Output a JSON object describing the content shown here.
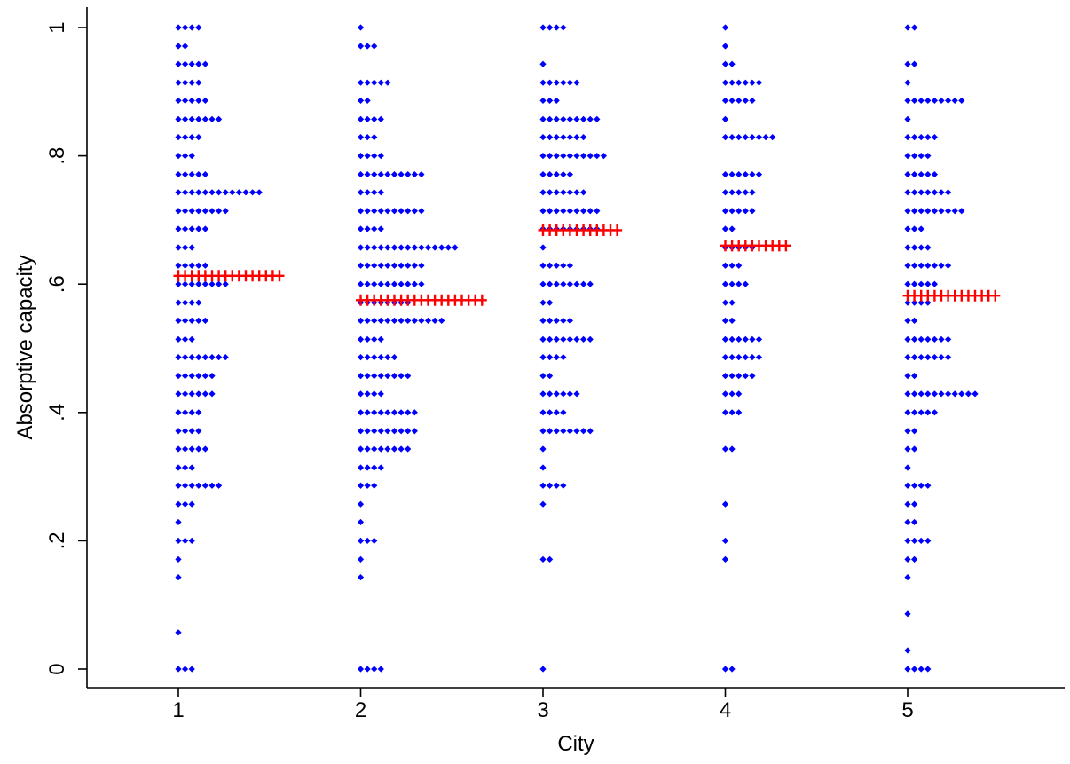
{
  "chart_data": {
    "type": "scatter",
    "title": "",
    "xlabel": "City",
    "ylabel": "Absorptive capacity",
    "x_ticks": [
      {
        "value": 1,
        "label": "1"
      },
      {
        "value": 2,
        "label": "2"
      },
      {
        "value": 3,
        "label": "3"
      },
      {
        "value": 4,
        "label": "4"
      },
      {
        "value": 5,
        "label": "5"
      }
    ],
    "y_ticks": [
      {
        "value": 0,
        "label": "0"
      },
      {
        "value": 0.2,
        "label": ".2"
      },
      {
        "value": 0.4,
        "label": ".4"
      },
      {
        "value": 0.6,
        "label": ".6"
      },
      {
        "value": 0.8,
        "label": ".8"
      },
      {
        "value": 1,
        "label": "1"
      }
    ],
    "xlim": [
      0.5,
      5.85
    ],
    "ylim": [
      -0.03,
      1.03
    ],
    "grid": false,
    "legend": "none",
    "series": [
      {
        "marker": "diamond",
        "color": "#0000ff",
        "groups": [
          {
            "city": 1,
            "bins": [
              {
                "y": 1.0,
                "count": 4
              },
              {
                "y": 0.971,
                "count": 2
              },
              {
                "y": 0.943,
                "count": 5
              },
              {
                "y": 0.914,
                "count": 4
              },
              {
                "y": 0.886,
                "count": 5
              },
              {
                "y": 0.857,
                "count": 7
              },
              {
                "y": 0.829,
                "count": 4
              },
              {
                "y": 0.8,
                "count": 3
              },
              {
                "y": 0.771,
                "count": 5
              },
              {
                "y": 0.743,
                "count": 13
              },
              {
                "y": 0.714,
                "count": 8
              },
              {
                "y": 0.686,
                "count": 5
              },
              {
                "y": 0.657,
                "count": 3
              },
              {
                "y": 0.629,
                "count": 5
              },
              {
                "y": 0.6,
                "count": 8
              },
              {
                "y": 0.571,
                "count": 4
              },
              {
                "y": 0.543,
                "count": 5
              },
              {
                "y": 0.514,
                "count": 3
              },
              {
                "y": 0.486,
                "count": 8
              },
              {
                "y": 0.457,
                "count": 6
              },
              {
                "y": 0.429,
                "count": 6
              },
              {
                "y": 0.4,
                "count": 4
              },
              {
                "y": 0.371,
                "count": 4
              },
              {
                "y": 0.343,
                "count": 5
              },
              {
                "y": 0.314,
                "count": 3
              },
              {
                "y": 0.286,
                "count": 7
              },
              {
                "y": 0.257,
                "count": 3
              },
              {
                "y": 0.229,
                "count": 1
              },
              {
                "y": 0.2,
                "count": 3
              },
              {
                "y": 0.171,
                "count": 1
              },
              {
                "y": 0.143,
                "count": 1
              },
              {
                "y": 0.057,
                "count": 1
              },
              {
                "y": 0.0,
                "count": 3
              }
            ]
          },
          {
            "city": 2,
            "bins": [
              {
                "y": 1.0,
                "count": 1
              },
              {
                "y": 0.971,
                "count": 3
              },
              {
                "y": 0.914,
                "count": 5
              },
              {
                "y": 0.886,
                "count": 2
              },
              {
                "y": 0.857,
                "count": 4
              },
              {
                "y": 0.829,
                "count": 3
              },
              {
                "y": 0.8,
                "count": 4
              },
              {
                "y": 0.771,
                "count": 10
              },
              {
                "y": 0.743,
                "count": 4
              },
              {
                "y": 0.714,
                "count": 10
              },
              {
                "y": 0.686,
                "count": 4
              },
              {
                "y": 0.657,
                "count": 15
              },
              {
                "y": 0.629,
                "count": 10
              },
              {
                "y": 0.6,
                "count": 10
              },
              {
                "y": 0.571,
                "count": 8
              },
              {
                "y": 0.543,
                "count": 13
              },
              {
                "y": 0.514,
                "count": 4
              },
              {
                "y": 0.486,
                "count": 6
              },
              {
                "y": 0.457,
                "count": 8
              },
              {
                "y": 0.429,
                "count": 4
              },
              {
                "y": 0.4,
                "count": 9
              },
              {
                "y": 0.371,
                "count": 9
              },
              {
                "y": 0.343,
                "count": 8
              },
              {
                "y": 0.314,
                "count": 4
              },
              {
                "y": 0.286,
                "count": 3
              },
              {
                "y": 0.257,
                "count": 1
              },
              {
                "y": 0.229,
                "count": 1
              },
              {
                "y": 0.2,
                "count": 3
              },
              {
                "y": 0.171,
                "count": 1
              },
              {
                "y": 0.143,
                "count": 1
              },
              {
                "y": 0.0,
                "count": 4
              }
            ]
          },
          {
            "city": 3,
            "bins": [
              {
                "y": 1.0,
                "count": 4
              },
              {
                "y": 0.943,
                "count": 1
              },
              {
                "y": 0.914,
                "count": 6
              },
              {
                "y": 0.886,
                "count": 3
              },
              {
                "y": 0.857,
                "count": 9
              },
              {
                "y": 0.829,
                "count": 7
              },
              {
                "y": 0.8,
                "count": 10
              },
              {
                "y": 0.771,
                "count": 5
              },
              {
                "y": 0.743,
                "count": 7
              },
              {
                "y": 0.714,
                "count": 9
              },
              {
                "y": 0.686,
                "count": 9
              },
              {
                "y": 0.657,
                "count": 1
              },
              {
                "y": 0.629,
                "count": 5
              },
              {
                "y": 0.6,
                "count": 8
              },
              {
                "y": 0.571,
                "count": 2
              },
              {
                "y": 0.543,
                "count": 5
              },
              {
                "y": 0.514,
                "count": 8
              },
              {
                "y": 0.486,
                "count": 4
              },
              {
                "y": 0.457,
                "count": 2
              },
              {
                "y": 0.429,
                "count": 6
              },
              {
                "y": 0.4,
                "count": 4
              },
              {
                "y": 0.371,
                "count": 8
              },
              {
                "y": 0.343,
                "count": 1
              },
              {
                "y": 0.314,
                "count": 1
              },
              {
                "y": 0.286,
                "count": 4
              },
              {
                "y": 0.257,
                "count": 1
              },
              {
                "y": 0.171,
                "count": 2
              },
              {
                "y": 0.0,
                "count": 1
              }
            ]
          },
          {
            "city": 4,
            "bins": [
              {
                "y": 1.0,
                "count": 1
              },
              {
                "y": 0.971,
                "count": 1
              },
              {
                "y": 0.943,
                "count": 2
              },
              {
                "y": 0.914,
                "count": 6
              },
              {
                "y": 0.886,
                "count": 5
              },
              {
                "y": 0.857,
                "count": 1
              },
              {
                "y": 0.829,
                "count": 8
              },
              {
                "y": 0.771,
                "count": 6
              },
              {
                "y": 0.743,
                "count": 5
              },
              {
                "y": 0.714,
                "count": 5
              },
              {
                "y": 0.686,
                "count": 2
              },
              {
                "y": 0.657,
                "count": 5
              },
              {
                "y": 0.629,
                "count": 3
              },
              {
                "y": 0.6,
                "count": 4
              },
              {
                "y": 0.571,
                "count": 2
              },
              {
                "y": 0.543,
                "count": 2
              },
              {
                "y": 0.514,
                "count": 6
              },
              {
                "y": 0.486,
                "count": 6
              },
              {
                "y": 0.457,
                "count": 5
              },
              {
                "y": 0.429,
                "count": 3
              },
              {
                "y": 0.4,
                "count": 3
              },
              {
                "y": 0.343,
                "count": 2
              },
              {
                "y": 0.257,
                "count": 1
              },
              {
                "y": 0.2,
                "count": 1
              },
              {
                "y": 0.171,
                "count": 1
              },
              {
                "y": 0.0,
                "count": 2
              }
            ]
          },
          {
            "city": 5,
            "bins": [
              {
                "y": 1.0,
                "count": 2
              },
              {
                "y": 0.943,
                "count": 2
              },
              {
                "y": 0.914,
                "count": 1
              },
              {
                "y": 0.886,
                "count": 9
              },
              {
                "y": 0.857,
                "count": 1
              },
              {
                "y": 0.829,
                "count": 5
              },
              {
                "y": 0.8,
                "count": 4
              },
              {
                "y": 0.771,
                "count": 5
              },
              {
                "y": 0.743,
                "count": 7
              },
              {
                "y": 0.714,
                "count": 9
              },
              {
                "y": 0.686,
                "count": 3
              },
              {
                "y": 0.657,
                "count": 4
              },
              {
                "y": 0.629,
                "count": 7
              },
              {
                "y": 0.6,
                "count": 5
              },
              {
                "y": 0.571,
                "count": 4
              },
              {
                "y": 0.543,
                "count": 2
              },
              {
                "y": 0.514,
                "count": 7
              },
              {
                "y": 0.486,
                "count": 7
              },
              {
                "y": 0.457,
                "count": 2
              },
              {
                "y": 0.429,
                "count": 11
              },
              {
                "y": 0.4,
                "count": 5
              },
              {
                "y": 0.371,
                "count": 2
              },
              {
                "y": 0.343,
                "count": 2
              },
              {
                "y": 0.314,
                "count": 1
              },
              {
                "y": 0.286,
                "count": 4
              },
              {
                "y": 0.257,
                "count": 2
              },
              {
                "y": 0.229,
                "count": 2
              },
              {
                "y": 0.2,
                "count": 4
              },
              {
                "y": 0.171,
                "count": 2
              },
              {
                "y": 0.143,
                "count": 1
              },
              {
                "y": 0.086,
                "count": 1
              },
              {
                "y": 0.029,
                "count": 1
              },
              {
                "y": 0.0,
                "count": 4
              }
            ]
          }
        ]
      },
      {
        "marker": "plus",
        "color": "#ff0000",
        "groups": [
          {
            "city": 1,
            "y": 0.613,
            "count": 16
          },
          {
            "city": 2,
            "y": 0.575,
            "count": 19
          },
          {
            "city": 3,
            "y": 0.684,
            "count": 12
          },
          {
            "city": 4,
            "y": 0.66,
            "count": 10
          },
          {
            "city": 5,
            "y": 0.582,
            "count": 14
          }
        ]
      }
    ]
  }
}
